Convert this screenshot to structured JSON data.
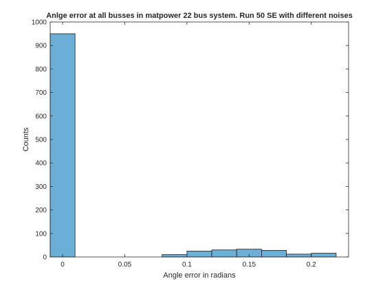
{
  "chart_data": {
    "type": "bar",
    "title": "Anlge error at all busses in matpower 22 bus system. Run 50 SE with different noises",
    "xlabel": "Angle error in radians",
    "ylabel": "Counts",
    "xlim": [
      -0.01,
      0.23
    ],
    "ylim": [
      0,
      1000
    ],
    "bin_edges": [
      -0.01,
      0.01,
      0.03,
      0.05,
      0.07,
      0.08,
      0.1,
      0.12,
      0.14,
      0.16,
      0.18,
      0.2,
      0.22
    ],
    "values": [
      950,
      0,
      0,
      0,
      0,
      10,
      25,
      30,
      33,
      28,
      12,
      16
    ],
    "xticks": [
      0,
      0.05,
      0.1,
      0.15,
      0.2
    ],
    "xtick_labels": [
      "0",
      "0.05",
      "0.1",
      "0.15",
      "0.2"
    ],
    "yticks": [
      0,
      100,
      200,
      300,
      400,
      500,
      600,
      700,
      800,
      900,
      1000
    ],
    "ytick_labels": [
      "0",
      "100",
      "200",
      "300",
      "400",
      "500",
      "600",
      "700",
      "800",
      "900",
      "1000"
    ],
    "grid": false,
    "colors": {
      "bar_fill": "#6baed6",
      "bar_edge": "#1a1a1a",
      "axis": "#262626"
    }
  }
}
